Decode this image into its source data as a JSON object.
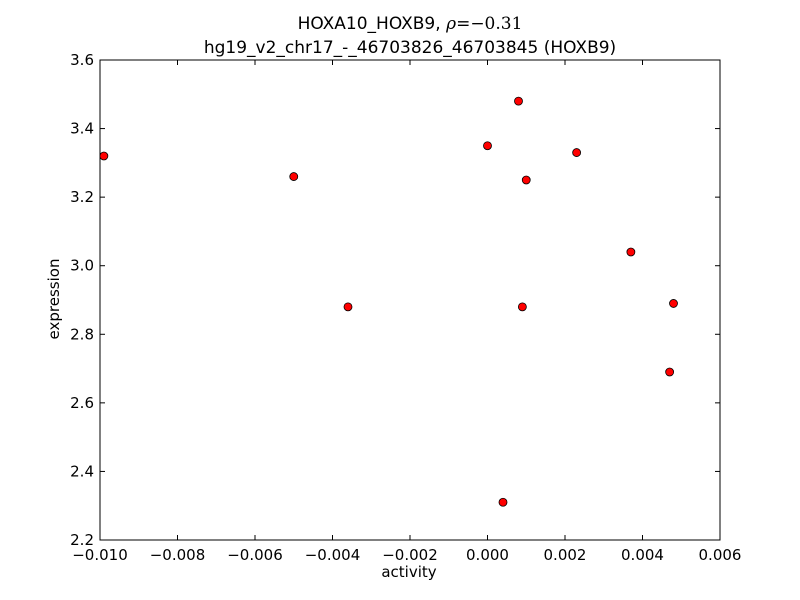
{
  "chart_data": {
    "type": "scatter",
    "title_line1_prefix": "HOXA10_HOXB9, ",
    "title_line1_symbol": "ρ",
    "title_line1_equals": "=",
    "title_line1_value": "−0.31",
    "title_line2": "hg19_v2_chr17_-_46703826_46703845 (HOXB9)",
    "xlabel": "activity",
    "ylabel": "expression",
    "xlim": [
      -0.01,
      0.006
    ],
    "ylim": [
      2.2,
      3.6
    ],
    "x_ticks": [
      -0.01,
      -0.008,
      -0.006,
      -0.004,
      -0.002,
      0.0,
      0.002,
      0.004,
      0.006
    ],
    "x_tick_labels": [
      "−0.010",
      "−0.008",
      "−0.006",
      "−0.004",
      "−0.002",
      "0.000",
      "0.002",
      "0.004",
      "0.006"
    ],
    "y_ticks": [
      2.2,
      2.4,
      2.6,
      2.8,
      3.0,
      3.2,
      3.4,
      3.6
    ],
    "y_tick_labels": [
      "2.2",
      "2.4",
      "2.6",
      "2.8",
      "3.0",
      "3.2",
      "3.4",
      "3.6"
    ],
    "grid": false,
    "marker_color": "#ff0000",
    "marker_edge_color": "#000000",
    "points": [
      {
        "x": -0.0099,
        "y": 3.32
      },
      {
        "x": -0.005,
        "y": 3.26
      },
      {
        "x": -0.0036,
        "y": 2.88
      },
      {
        "x": 0.0,
        "y": 3.35
      },
      {
        "x": 0.0004,
        "y": 2.31
      },
      {
        "x": 0.0008,
        "y": 3.48
      },
      {
        "x": 0.0009,
        "y": 2.88
      },
      {
        "x": 0.001,
        "y": 3.25
      },
      {
        "x": 0.0023,
        "y": 3.33
      },
      {
        "x": 0.0037,
        "y": 3.04
      },
      {
        "x": 0.0047,
        "y": 2.69
      },
      {
        "x": 0.0048,
        "y": 2.89
      }
    ]
  }
}
